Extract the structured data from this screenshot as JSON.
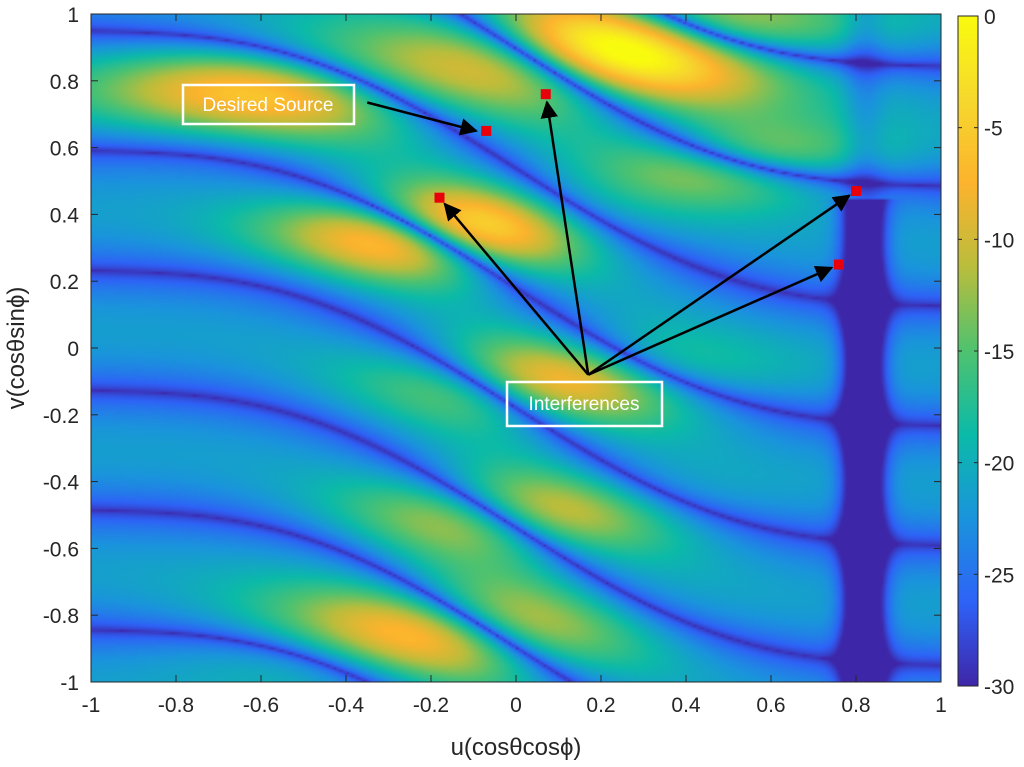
{
  "chart_data": {
    "type": "heatmap",
    "xlabel": "u(cosθcosϕ)",
    "ylabel": "v(cosθsinϕ)",
    "xlim": [
      -1,
      1
    ],
    "ylim": [
      -1,
      1
    ],
    "xticks": [
      -1,
      -0.8,
      -0.6,
      -0.4,
      -0.2,
      0,
      0.2,
      0.4,
      0.6,
      0.8,
      1
    ],
    "xtick_labels": [
      "-1",
      "-0.8",
      "-0.6",
      "-0.4",
      "-0.2",
      "0",
      "0.2",
      "0.4",
      "0.6",
      "0.8",
      "1"
    ],
    "yticks": [
      1,
      0.8,
      0.6,
      0.4,
      0.2,
      0,
      -0.2,
      -0.4,
      -0.6,
      -0.8,
      -1
    ],
    "ytick_labels": [
      "1",
      "0.8",
      "0.6",
      "0.4",
      "0.2",
      "0",
      "-0.2",
      "-0.4",
      "-0.6",
      "-0.8",
      "-1"
    ],
    "colorbar": {
      "range": [
        -30,
        0
      ],
      "ticks": [
        0,
        -5,
        -10,
        -15,
        -20,
        -25,
        -30
      ],
      "tick_labels": [
        "0",
        "-5",
        "-10",
        "-15",
        "-20",
        "-25",
        "-30"
      ],
      "colormap": "parula"
    },
    "grid": false,
    "markers": [
      {
        "role": "desired",
        "u": -0.07,
        "v": 0.65,
        "color": "#e8000b"
      },
      {
        "role": "interference",
        "u": 0.07,
        "v": 0.76,
        "color": "#e8000b"
      },
      {
        "role": "interference",
        "u": -0.18,
        "v": 0.45,
        "color": "#e8000b"
      },
      {
        "role": "interference",
        "u": 0.8,
        "v": 0.47,
        "color": "#e8000b"
      },
      {
        "role": "interference",
        "u": 0.76,
        "v": 0.25,
        "color": "#e8000b"
      }
    ],
    "annotations": {
      "desired_label": "Desired Source",
      "interference_label": "Interferences",
      "desired_arrow_from": {
        "u": -0.35,
        "v": 0.735
      },
      "interference_arrow_from": {
        "u": 0.17,
        "v": -0.08
      }
    }
  }
}
